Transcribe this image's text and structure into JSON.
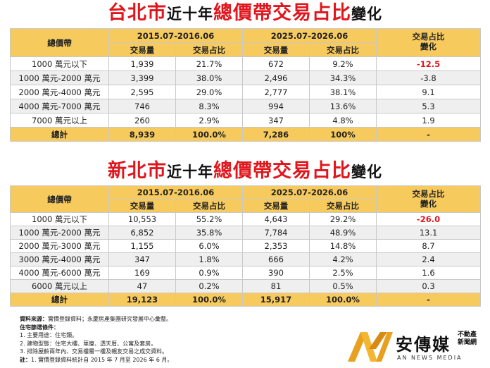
{
  "title1": {
    "city": "台北市",
    "mid": "近十年",
    "rest": "總價帶交易占比",
    "tail": "變化"
  },
  "title2": {
    "city": "新北市",
    "mid": "近十年",
    "rest": "總價帶交易占比",
    "tail": "變化"
  },
  "headers": {
    "band": "總價帶",
    "period1": "2015.07-2016.06",
    "period2": "2025.07-2026.06",
    "volume": "交易量",
    "share": "交易占比",
    "change_line1": "交易占比",
    "change_line2": "變化"
  },
  "table1_rows": [
    {
      "band": "1000 萬元以下",
      "v1": "1,939",
      "s1": "21.7%",
      "v2": "672",
      "s2": "9.2%",
      "chg": "-12.5"
    },
    {
      "band": "1000 萬元-2000 萬元",
      "v1": "3,399",
      "s1": "38.0%",
      "v2": "2,496",
      "s2": "34.3%",
      "chg": "-3.8"
    },
    {
      "band": "2000 萬元-4000 萬元",
      "v1": "2,595",
      "s1": "29.0%",
      "v2": "2,777",
      "s2": "38.1%",
      "chg": "9.1"
    },
    {
      "band": "4000 萬元-7000 萬元",
      "v1": "746",
      "s1": "8.3%",
      "v2": "994",
      "s2": "13.6%",
      "chg": "5.3"
    },
    {
      "band": "7000 萬元以上",
      "v1": "260",
      "s1": "2.9%",
      "v2": "347",
      "s2": "4.8%",
      "chg": "1.9"
    }
  ],
  "table1_total": {
    "band": "總計",
    "v1": "8,939",
    "s1": "100.0%",
    "v2": "7,286",
    "s2": "100%",
    "chg": "-"
  },
  "table2_rows": [
    {
      "band": "1000 萬元以下",
      "v1": "10,553",
      "s1": "55.2%",
      "v2": "4,643",
      "s2": "29.2%",
      "chg": "-26.0"
    },
    {
      "band": "1000 萬元-2000 萬元",
      "v1": "6,852",
      "s1": "35.8%",
      "v2": "7,784",
      "s2": "48.9%",
      "chg": "13.1"
    },
    {
      "band": "2000 萬元-3000 萬元",
      "v1": "1,155",
      "s1": "6.0%",
      "v2": "2,353",
      "s2": "14.8%",
      "chg": "8.7"
    },
    {
      "band": "3000 萬元-4000 萬元",
      "v1": "347",
      "s1": "1.8%",
      "v2": "666",
      "s2": "4.2%",
      "chg": "2.4"
    },
    {
      "band": "4000 萬元-6000 萬元",
      "v1": "169",
      "s1": "0.9%",
      "v2": "390",
      "s2": "2.5%",
      "chg": "1.6"
    },
    {
      "band": "6000 萬元以上",
      "v1": "47",
      "s1": "0.2%",
      "v2": "81",
      "s2": "0.5%",
      "chg": "0.3"
    }
  ],
  "table2_total": {
    "band": "總計",
    "v1": "19,123",
    "s1": "100.0%",
    "v2": "15,917",
    "s2": "100.0%",
    "chg": "-"
  },
  "notes": {
    "source_label": "資料來源：",
    "source": "實價登錄資料；永慶房產集團研究發展中心彙整。",
    "filter_label": "住宅篩選條件：",
    "items": [
      "1. 主要用途：住宅類。",
      "2. 建物型態：住宅大樓、華廈、透天厝、公寓及套房。",
      "3. 排除屋齡兩年內、交易樓層一樓及親友交易之成交資料。"
    ],
    "note_label": "註：",
    "note": "1. 實價登錄資料統計自 2015 年 7 月至 2026 年 6 月。"
  },
  "logo": {
    "name": "安傳媒",
    "sub1": "不動產",
    "sub2": "新聞網",
    "en": "AN NEWS MEDIA"
  },
  "colors": {
    "header_bg": "#f7ca5e",
    "accent_red": "#e0161c",
    "row_alt": "#efefef"
  }
}
